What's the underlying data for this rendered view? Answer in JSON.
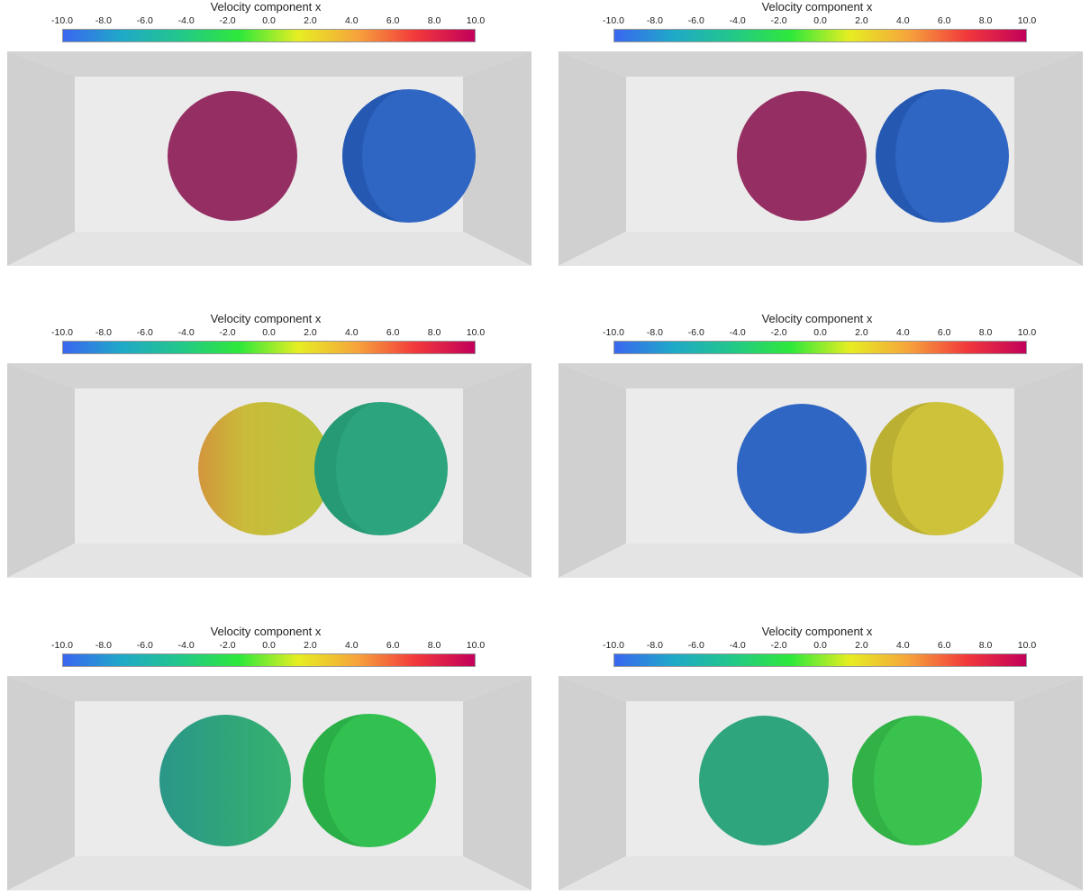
{
  "colorbar": {
    "title": "Velocity component x",
    "ticks": [
      "-10.0",
      "-8.0",
      "-6.0",
      "-4.0",
      "-2.0",
      "0.0",
      "2.0",
      "4.0",
      "6.0",
      "8.0",
      "10.0"
    ],
    "range": [
      -10,
      10
    ],
    "colormap": [
      "#3a66f0",
      "#1fa9c8",
      "#22c78a",
      "#2fe83a",
      "#e6ee22",
      "#f6a43c",
      "#f2383c",
      "#c2005a"
    ]
  },
  "panels": [
    {
      "id": "top-left",
      "left_color": "#952f63",
      "right_color": "#2f65c3"
    },
    {
      "id": "top-right",
      "left_color": "#952f63",
      "right_color": "#2f65c3"
    },
    {
      "id": "middle-left",
      "left_color": "#c7c03a",
      "right_color": "#2ca47e"
    },
    {
      "id": "middle-right",
      "left_color": "#2f65c3",
      "right_color": "#cdc23a"
    },
    {
      "id": "bottom-left",
      "left_color": "#2ea37c",
      "right_color": "#32c050"
    },
    {
      "id": "bottom-right",
      "left_color": "#2ea57c",
      "right_color": "#3ac24e"
    }
  ]
}
